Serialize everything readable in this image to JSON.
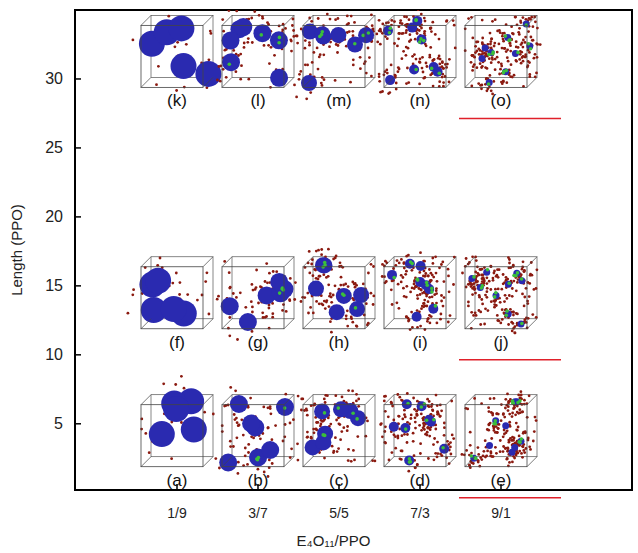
{
  "chart_data": {
    "type": "scatter",
    "x_label": "E₄O₁₁/PPO",
    "y_label": "Length (PPO)",
    "categories": [
      "1/9",
      "3/7",
      "5/5",
      "7/3",
      "9/1"
    ],
    "ylim": [
      0.2,
      35
    ],
    "yticks": [
      5,
      10,
      15,
      20,
      25,
      30
    ],
    "series": [
      {
        "values": [
          4.5,
          4.5,
          4.5,
          4.5,
          4.5
        ],
        "labels": [
          "(a)",
          "(b)",
          "(c)",
          "(d)",
          "(e)"
        ]
      },
      {
        "values": [
          14.5,
          14.5,
          14.5,
          14.5,
          14.5
        ],
        "labels": [
          "(f)",
          "(g)",
          "(h)",
          "(i)",
          "(j)"
        ]
      },
      {
        "values": [
          32,
          32,
          32,
          32,
          32
        ],
        "labels": [
          "(k)",
          "(l)",
          "(m)",
          "(n)",
          "(o)"
        ]
      }
    ]
  }
}
